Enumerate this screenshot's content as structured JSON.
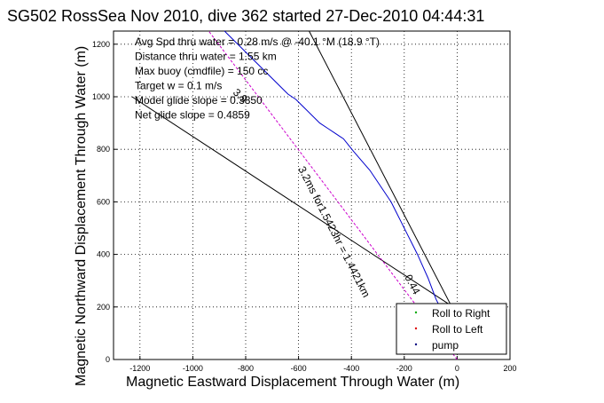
{
  "chart_data": {
    "type": "line",
    "title": "SG502 RossSea Nov 2010, dive 362 started 27-Dec-2010 04:44:31",
    "xlabel": "Magnetic Eastward Displacement Through Water (m)",
    "ylabel": "Magnetic Northward Displacement Through Water (m)",
    "xlim": [
      -1300,
      200
    ],
    "ylim": [
      0,
      1250
    ],
    "x_ticks": [
      -1200,
      -1000,
      -800,
      -600,
      -400,
      -200,
      0,
      200
    ],
    "y_ticks": [
      0,
      200,
      400,
      600,
      800,
      1000,
      1200
    ],
    "grid": true,
    "legend_position": "bottom-right",
    "annotations": [
      "Avg Spd thru water = 0.28 m/s @ -40.1    °M (18.9 °T)",
      "Distance thru water = 1.55 km",
      "Max buoy (cmdfile) = 150 cc",
      "Target w = 0.1 m/s",
      "Model glide slope = 0.3850",
      "Net glide slope = 0.4859"
    ],
    "rotated_labels": [
      "3.9",
      "3.2ms for1.5423hr = 1.4421km",
      "0.44"
    ],
    "legend": [
      {
        "label": "Roll to Right",
        "color": "#00aa00"
      },
      {
        "label": "Roll to Left",
        "color": "#dd0000"
      },
      {
        "label": "pump",
        "color": "#000080"
      }
    ],
    "series": [
      {
        "name": "pump",
        "color": "#0000cc",
        "x": [
          -40,
          -60,
          -80,
          -95,
          -110,
          -130,
          -150,
          -170,
          -190,
          -210,
          -230,
          -250,
          -270,
          -290,
          -310,
          -330,
          -360,
          -390,
          -410,
          -430,
          -460,
          -490,
          -520,
          -550,
          -580,
          -610,
          -640,
          -670,
          -700,
          -730,
          -760,
          -790,
          -820,
          -850,
          -870,
          -880
        ],
        "y": [
          150,
          190,
          230,
          270,
          310,
          355,
          400,
          440,
          480,
          520,
          560,
          600,
          630,
          660,
          690,
          720,
          755,
          790,
          815,
          840,
          860,
          880,
          900,
          930,
          960,
          990,
          1010,
          1040,
          1070,
          1100,
          1130,
          1160,
          1190,
          1220,
          1240,
          1250
        ]
      },
      {
        "name": "",
        "color": "#cc00cc",
        "style": "dashed",
        "x": [
          0,
          -940
        ],
        "y": [
          0,
          1250
        ]
      }
    ],
    "reference_lines": [
      {
        "x": [
          -30,
          -1230
        ],
        "y": [
          210,
          1000
        ],
        "color": "#000000"
      },
      {
        "x": [
          -20,
          -560
        ],
        "y": [
          200,
          1250
        ],
        "color": "#000000"
      }
    ]
  }
}
